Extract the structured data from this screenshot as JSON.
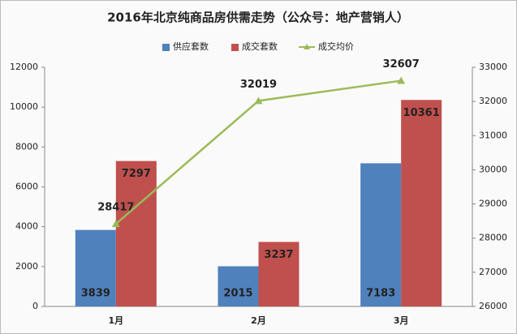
{
  "chart_data": {
    "type": "bar-line",
    "title": "2016年北京纯商品房供需走势（公众号：地产营销人）",
    "categories": [
      "1月",
      "2月",
      "3月"
    ],
    "series": [
      {
        "name": "供应套数",
        "color": "#4f81bd",
        "type": "bar",
        "values": [
          3839,
          2015,
          7183
        ]
      },
      {
        "name": "成交套数",
        "color": "#c0504d",
        "type": "bar",
        "values": [
          7297,
          3237,
          10361
        ]
      },
      {
        "name": "成交均价",
        "color": "#9bbb59",
        "type": "line",
        "axis": "y2",
        "values": [
          28417,
          32019,
          32607
        ]
      }
    ],
    "ylim": [
      0,
      12000
    ],
    "yticks": [
      0,
      2000,
      4000,
      6000,
      8000,
      10000,
      12000
    ],
    "y2lim": [
      26000,
      33000
    ],
    "y2ticks": [
      26000,
      27000,
      28000,
      29000,
      30000,
      31000,
      32000,
      33000
    ],
    "grid": false,
    "legend": "top"
  }
}
